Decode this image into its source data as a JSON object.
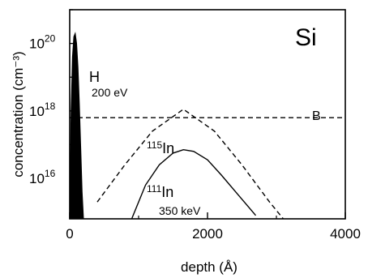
{
  "chart_data": {
    "type": "line",
    "panel_label": "Si",
    "xlabel": "depth (Å)",
    "ylabel": "concentration (cm⁻³)",
    "xlim": [
      0,
      4000
    ],
    "ylim_log10": [
      14.8,
      21.0
    ],
    "y_scale": "log",
    "x_ticks": [
      {
        "v": 0,
        "label": "0"
      },
      {
        "v": 2000,
        "label": "2000"
      },
      {
        "v": 4000,
        "label": "4000"
      }
    ],
    "y_ticks": [
      {
        "exp": 20,
        "base": "10",
        "sup": "20"
      },
      {
        "exp": 18,
        "base": "10",
        "sup": "18"
      },
      {
        "exp": 16,
        "base": "10",
        "sup": "16"
      }
    ],
    "series": [
      {
        "id": "h",
        "style": "filled",
        "color": "#000000",
        "x": [
          0,
          20,
          40,
          60,
          80,
          100,
          120,
          140,
          160,
          180,
          200
        ],
        "log10y": [
          14.8,
          18.0,
          19.6,
          20.2,
          20.3,
          20.0,
          19.3,
          18.2,
          16.9,
          15.6,
          14.8
        ]
      },
      {
        "id": "b",
        "style": "dashed",
        "color": "#000000",
        "x": [
          0,
          4000
        ],
        "log10y": [
          17.8,
          17.8
        ]
      },
      {
        "id": "in115",
        "style": "dashed",
        "color": "#000000",
        "x": [
          400,
          800,
          1200,
          1650,
          2100,
          2500,
          2900,
          3100
        ],
        "log10y": [
          15.3,
          16.4,
          17.4,
          18.05,
          17.4,
          16.4,
          15.3,
          14.8
        ]
      },
      {
        "id": "in111",
        "style": "solid",
        "color": "#000000",
        "x": [
          900,
          1100,
          1300,
          1500,
          1650,
          1800,
          2000,
          2200,
          2450,
          2700
        ],
        "log10y": [
          14.8,
          15.8,
          16.4,
          16.75,
          16.85,
          16.8,
          16.55,
          16.1,
          15.5,
          14.9
        ]
      }
    ],
    "annotations": {
      "h_label": "H",
      "h_energy": "200 eV",
      "b_label": "B",
      "in115_mass": "115",
      "in115_symbol": "In",
      "in111_mass": "111",
      "in111_symbol": "In",
      "in111_energy": "350 keV"
    }
  }
}
